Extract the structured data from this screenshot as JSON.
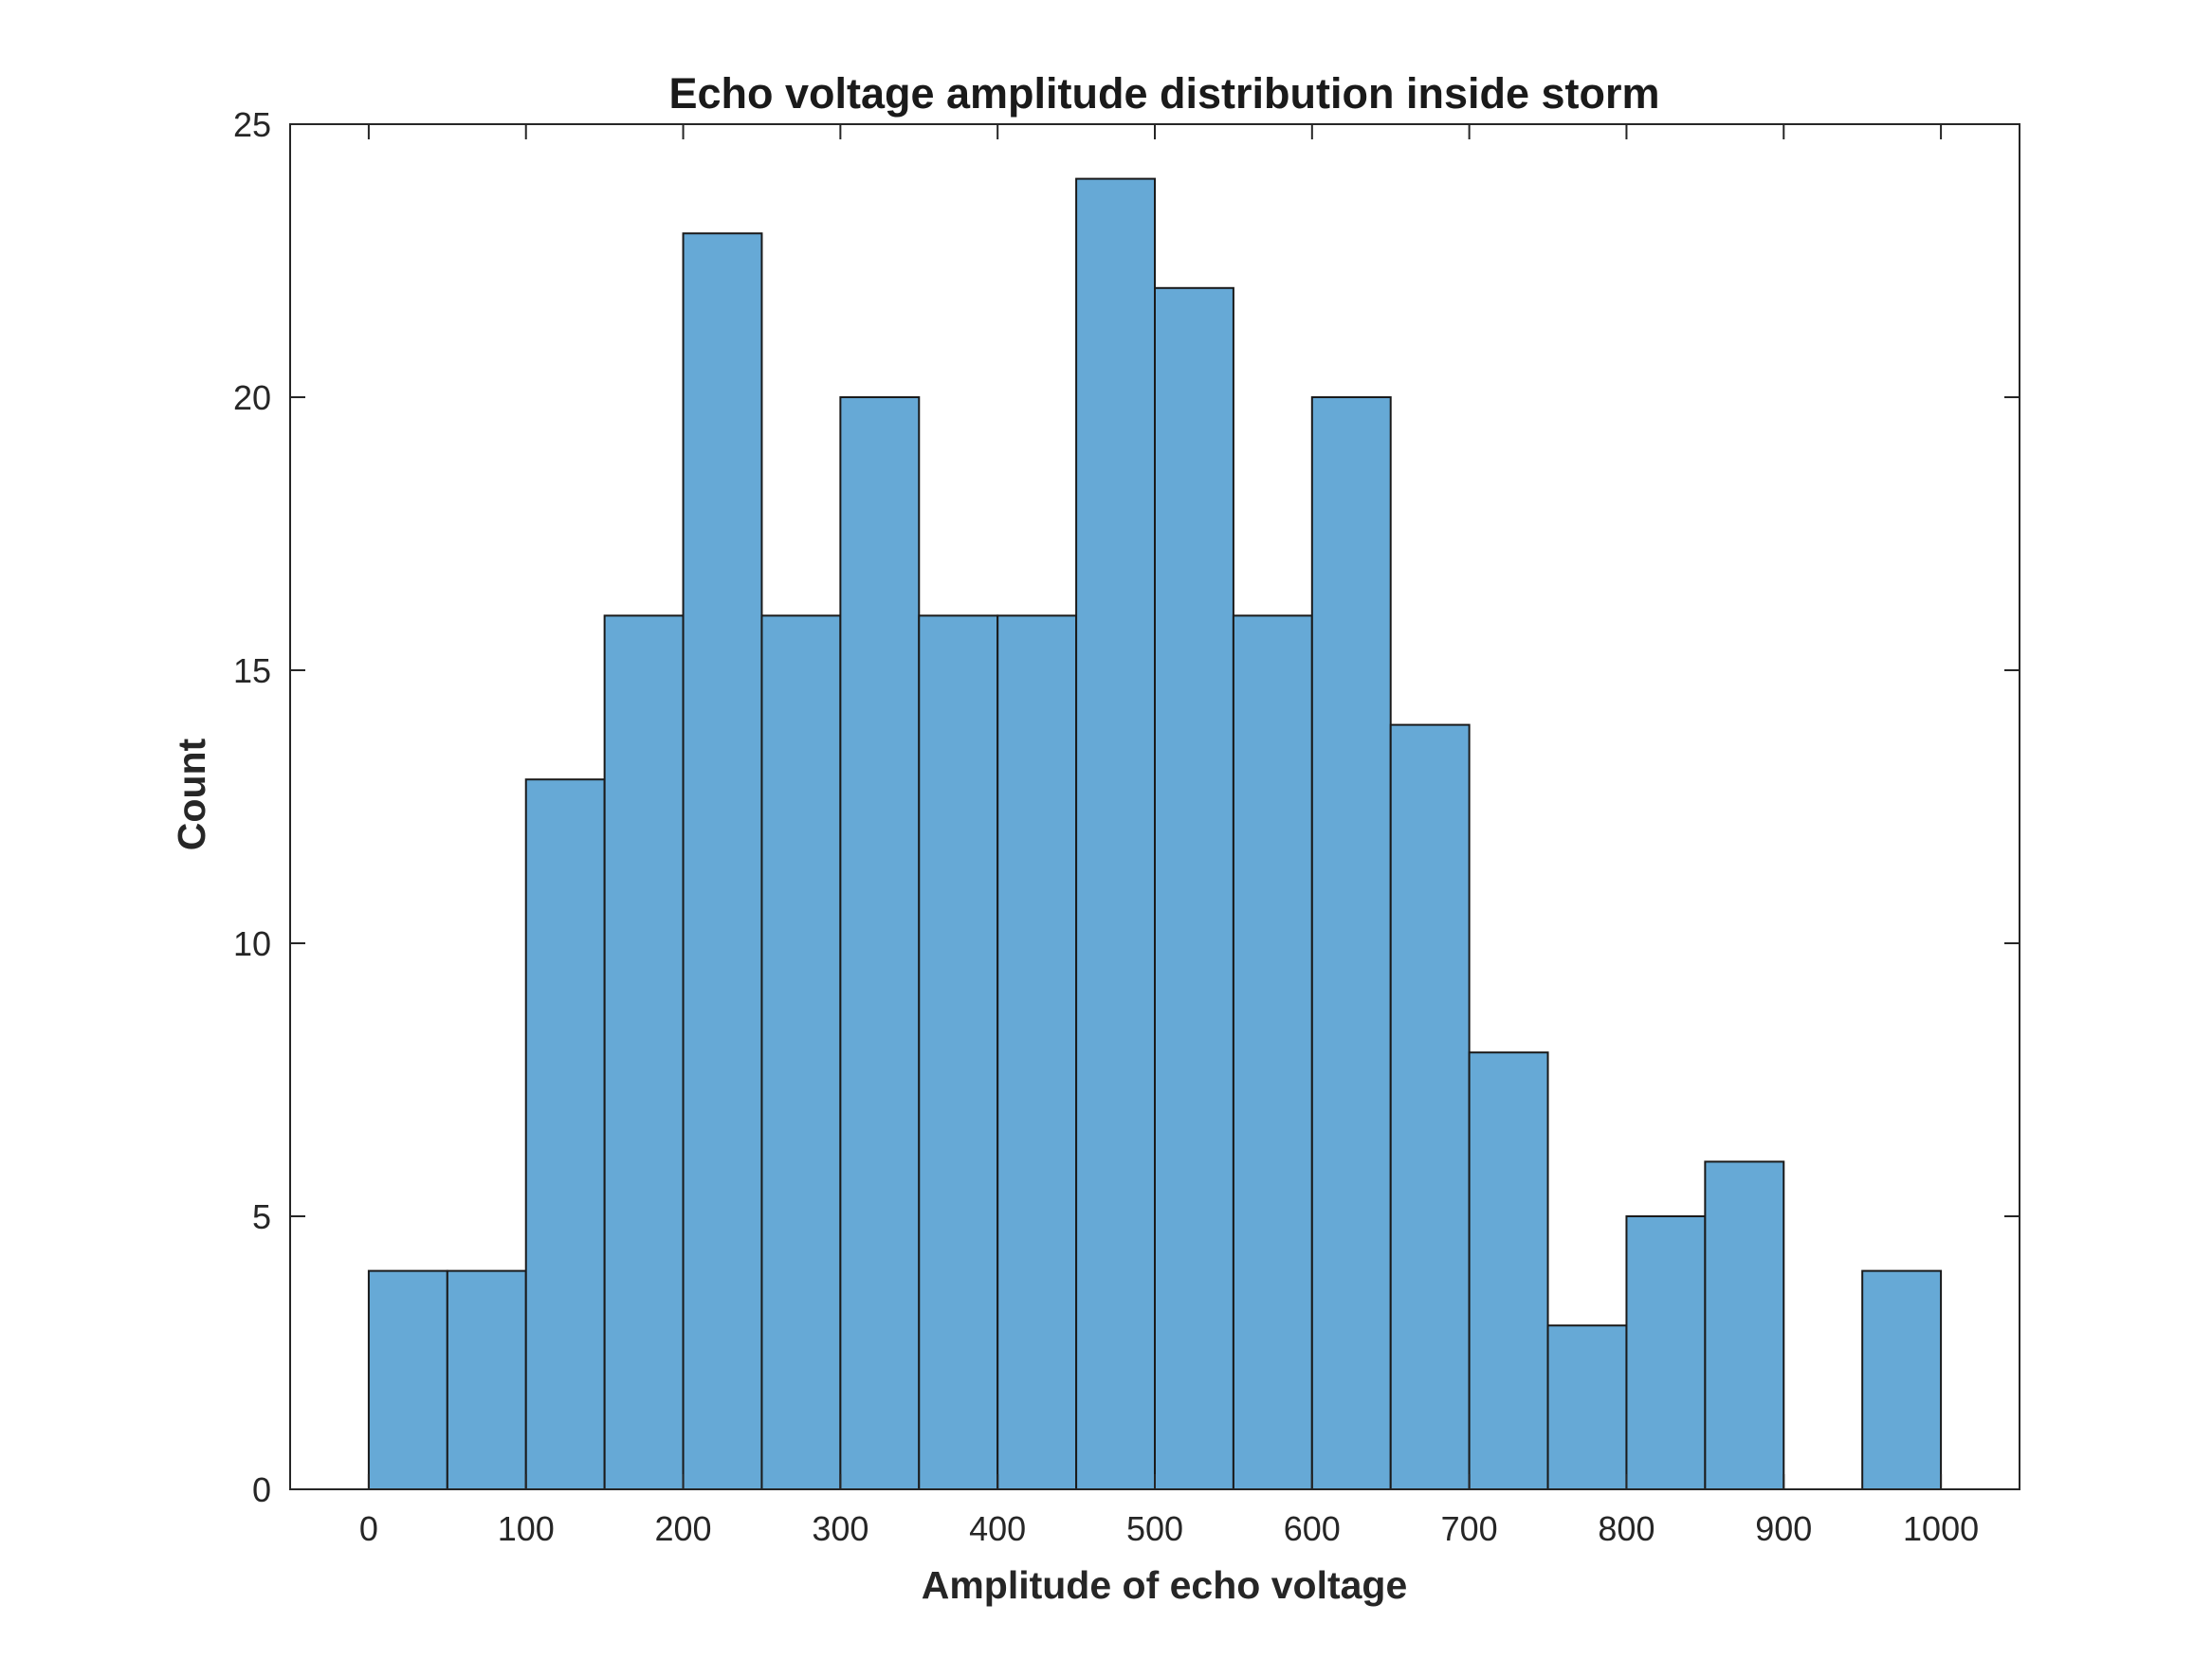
{
  "chart_data": {
    "type": "bar",
    "subtype": "histogram",
    "title": "Echo voltage amplitude distribution inside storm",
    "xlabel": "Amplitude of echo voltage",
    "ylabel": "Count",
    "bin_edges": [
      0,
      50,
      100,
      150,
      200,
      250,
      300,
      350,
      400,
      450,
      500,
      550,
      600,
      650,
      700,
      750,
      800,
      850,
      900,
      950,
      1000
    ],
    "values": [
      4,
      4,
      13,
      16,
      23,
      16,
      20,
      16,
      16,
      24,
      22,
      16,
      20,
      14,
      8,
      3,
      5,
      6,
      0,
      4
    ],
    "xlim": [
      -50,
      1050
    ],
    "ylim": [
      0,
      25
    ],
    "xticks": [
      0,
      100,
      200,
      300,
      400,
      500,
      600,
      700,
      800,
      900,
      1000
    ],
    "yticks": [
      0,
      5,
      10,
      15,
      20,
      25
    ],
    "grid": false,
    "colors": {
      "bar_fill": "#66a9d6",
      "bar_edge": "#1a1a1a",
      "axes": "#262626"
    }
  }
}
